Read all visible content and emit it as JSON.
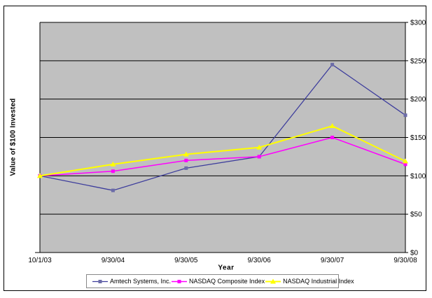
{
  "chart_data": {
    "type": "line",
    "title": "",
    "xlabel": "Year",
    "ylabel": "Value of $100 Invested",
    "x": [
      "10/1/03",
      "9/30/04",
      "9/30/05",
      "9/30/06",
      "9/30/07",
      "9/30/08"
    ],
    "series": [
      {
        "name": "Amtech Systems, Inc.",
        "color": "#3C3C9C",
        "marker": "square",
        "marker_color": "#6C6CA8",
        "line_width": 1.25,
        "values": [
          100,
          81,
          110,
          125,
          245,
          179
        ]
      },
      {
        "name": "NASDAQ Composite Index",
        "color": "#FF00FF",
        "marker": "square",
        "marker_color": "#FF00FF",
        "line_width": 1.5,
        "values": [
          100,
          106,
          120,
          125,
          150,
          115
        ]
      },
      {
        "name": "NASDAQ Industrial Index",
        "color": "#FFFF00",
        "marker": "triangle",
        "marker_color": "#FFFF00",
        "line_width": 2,
        "values": [
          100,
          115,
          128,
          137,
          165,
          119
        ]
      }
    ],
    "ylim": [
      0,
      300
    ],
    "yticks": [
      0,
      50,
      100,
      150,
      200,
      250,
      300
    ],
    "ytick_labels": [
      "$0",
      "$50",
      "$100",
      "$150",
      "$200",
      "$250",
      "$300"
    ],
    "y_axis_side": "right",
    "grid": true,
    "plot_bg": "#C0C0C0",
    "gridline_color": "#000000",
    "axis_color": "#000000",
    "legend_position": "bottom",
    "legend_border_color": "#888888"
  }
}
